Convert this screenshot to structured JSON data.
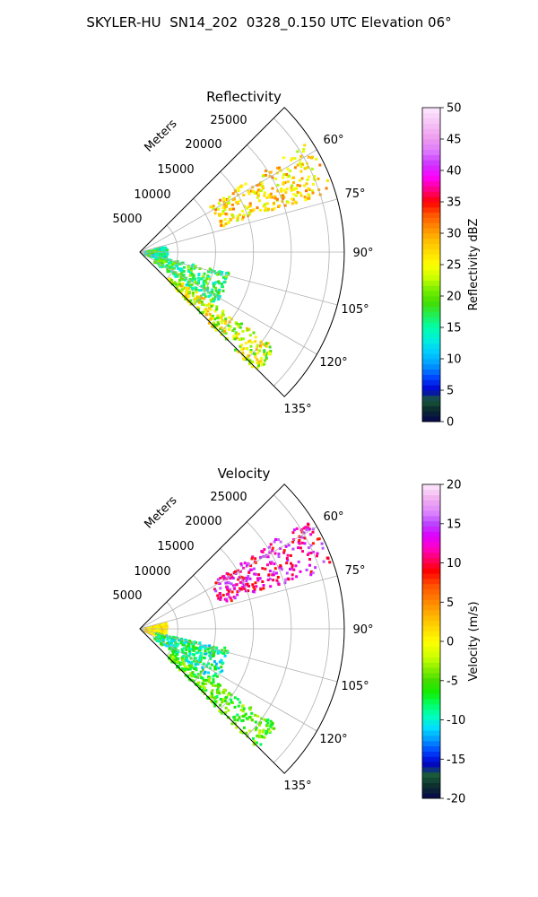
{
  "figure_title": "SKYLER-HU  SN14_202  0328_0.150 UTC Elevation 06°",
  "chart_data": [
    {
      "type": "heatmap",
      "subtype": "polar-sector-radar",
      "title": "Reflectivity",
      "radial_label": "Meters",
      "radial_ticks": [
        "5000",
        "10000",
        "15000",
        "20000",
        "25000"
      ],
      "angle_ticks": [
        "60°",
        "75°",
        "90°",
        "105°",
        "120°",
        "135°"
      ],
      "angle_range_deg": [
        45,
        135
      ],
      "range_max_m": 27000,
      "grid": true,
      "colorbar": {
        "label": "Reflectivity dBZ",
        "min": 0,
        "max": 50,
        "ticks": [
          "0",
          "5",
          "10",
          "15",
          "20",
          "25",
          "30",
          "35",
          "40",
          "45",
          "50"
        ]
      },
      "echo_regions": [
        {
          "az": [
            56,
            72
          ],
          "r_m": [
            11000,
            26500
          ],
          "value": [
            22,
            32
          ]
        },
        {
          "az": [
            74,
            108
          ],
          "r_m": [
            500,
            3500
          ],
          "value": [
            10,
            22
          ]
        },
        {
          "az": [
            102,
            125
          ],
          "r_m": [
            2000,
            12000
          ],
          "value": [
            12,
            22
          ]
        },
        {
          "az": [
            125,
            136
          ],
          "r_m": [
            5000,
            22000
          ],
          "value": [
            18,
            30
          ]
        }
      ]
    },
    {
      "type": "heatmap",
      "subtype": "polar-sector-radar",
      "title": "Velocity",
      "radial_label": "Meters",
      "radial_ticks": [
        "5000",
        "10000",
        "15000",
        "20000",
        "25000"
      ],
      "angle_ticks": [
        "60°",
        "75°",
        "90°",
        "105°",
        "120°",
        "135°"
      ],
      "angle_range_deg": [
        45,
        135
      ],
      "range_max_m": 27000,
      "grid": true,
      "colorbar": {
        "label": "Velocity (m/s)",
        "min": -20,
        "max": 20,
        "ticks": [
          "-20",
          "-15",
          "-10",
          "-5",
          "0",
          "5",
          "10",
          "15",
          "20"
        ]
      },
      "echo_regions": [
        {
          "az": [
            56,
            72
          ],
          "r_m": [
            11000,
            26500
          ],
          "value": [
            8,
            16
          ]
        },
        {
          "az": [
            74,
            108
          ],
          "r_m": [
            500,
            3500
          ],
          "value": [
            -1,
            3
          ]
        },
        {
          "az": [
            102,
            125
          ],
          "r_m": [
            2000,
            12000
          ],
          "value": [
            -12,
            -5
          ]
        },
        {
          "az": [
            125,
            136
          ],
          "r_m": [
            5000,
            22000
          ],
          "value": [
            -8,
            -2
          ]
        }
      ]
    }
  ]
}
